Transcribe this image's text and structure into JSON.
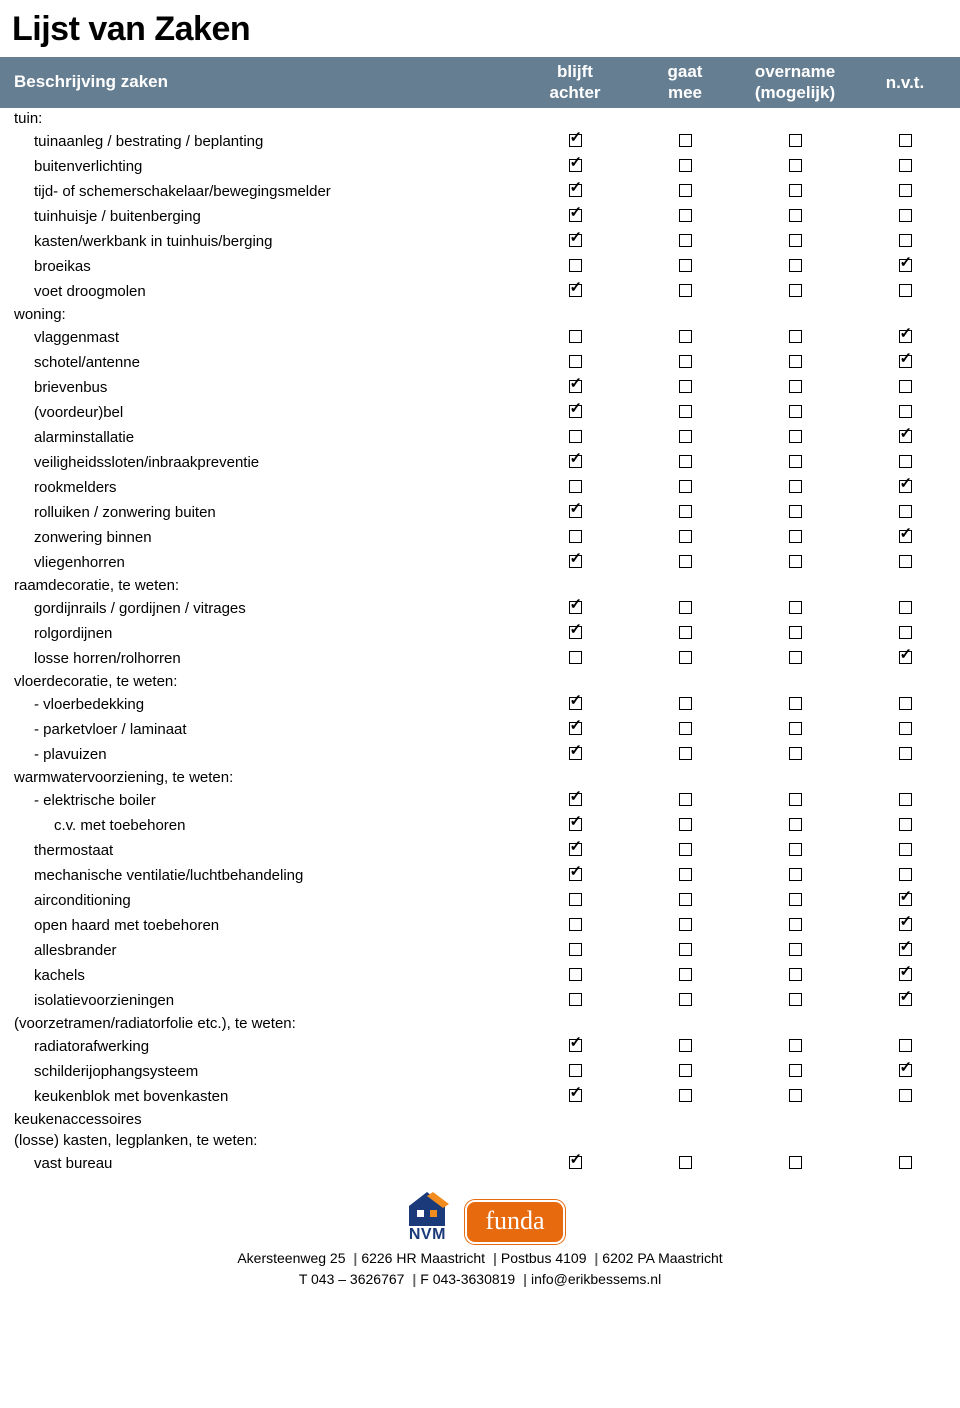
{
  "title": "Lijst van Zaken",
  "columns": {
    "description": "Beschrijving zaken",
    "c1": "blijft achter",
    "c2": "gaat mee",
    "c3": "overname (mogelijk)",
    "c4": "n.v.t."
  },
  "sections": [
    {
      "label": "tuin:",
      "items": [
        {
          "label": "tuinaanleg / bestrating / beplanting",
          "c": [
            1,
            0,
            0,
            0
          ]
        },
        {
          "label": "buitenverlichting",
          "c": [
            1,
            0,
            0,
            0
          ]
        },
        {
          "label": "tijd- of schemerschakelaar/bewegingsmelder",
          "c": [
            1,
            0,
            0,
            0
          ]
        },
        {
          "label": "tuinhuisje / buitenberging",
          "c": [
            1,
            0,
            0,
            0
          ]
        },
        {
          "label": "kasten/werkbank in tuinhuis/berging",
          "c": [
            1,
            0,
            0,
            0
          ]
        },
        {
          "label": "broeikas",
          "c": [
            0,
            0,
            0,
            1
          ]
        },
        {
          "label": "voet droogmolen",
          "c": [
            1,
            0,
            0,
            0
          ]
        }
      ]
    },
    {
      "label": "woning:",
      "items": [
        {
          "label": "vlaggenmast",
          "c": [
            0,
            0,
            0,
            1
          ]
        },
        {
          "label": "schotel/antenne",
          "c": [
            0,
            0,
            0,
            1
          ]
        },
        {
          "label": "brievenbus",
          "c": [
            1,
            0,
            0,
            0
          ]
        },
        {
          "label": "(voordeur)bel",
          "c": [
            1,
            0,
            0,
            0
          ]
        },
        {
          "label": "alarminstallatie",
          "c": [
            0,
            0,
            0,
            1
          ]
        },
        {
          "label": "veiligheidssloten/inbraakpreventie",
          "c": [
            1,
            0,
            0,
            0
          ]
        },
        {
          "label": "rookmelders",
          "c": [
            0,
            0,
            0,
            1
          ]
        },
        {
          "label": "rolluiken / zonwering buiten",
          "c": [
            1,
            0,
            0,
            0
          ]
        },
        {
          "label": "zonwering binnen",
          "c": [
            0,
            0,
            0,
            1
          ]
        },
        {
          "label": "vliegenhorren",
          "c": [
            1,
            0,
            0,
            0
          ]
        }
      ]
    },
    {
      "label": "raamdecoratie, te weten:",
      "items": [
        {
          "label": "gordijnrails / gordijnen / vitrages",
          "c": [
            1,
            0,
            0,
            0
          ]
        },
        {
          "label": "rolgordijnen",
          "c": [
            1,
            0,
            0,
            0
          ]
        },
        {
          "label": "losse horren/rolhorren",
          "c": [
            0,
            0,
            0,
            1
          ]
        }
      ]
    },
    {
      "label": "vloerdecoratie, te weten:",
      "items": [
        {
          "label": "- vloerbedekking",
          "c": [
            1,
            0,
            0,
            0
          ]
        },
        {
          "label": "- parketvloer / laminaat",
          "c": [
            1,
            0,
            0,
            0
          ]
        },
        {
          "label": "- plavuizen",
          "c": [
            1,
            0,
            0,
            0
          ]
        }
      ]
    },
    {
      "label": "warmwatervoorziening, te weten:",
      "items": [
        {
          "label": "- elektrische boiler",
          "c": [
            1,
            0,
            0,
            0
          ]
        },
        {
          "label": "c.v. met toebehoren",
          "indent": 2,
          "c": [
            1,
            0,
            0,
            0
          ]
        },
        {
          "label": "thermostaat",
          "c": [
            1,
            0,
            0,
            0
          ]
        },
        {
          "label": "mechanische ventilatie/luchtbehandeling",
          "c": [
            1,
            0,
            0,
            0
          ]
        },
        {
          "label": "airconditioning",
          "c": [
            0,
            0,
            0,
            1
          ]
        },
        {
          "label": "open haard met toebehoren",
          "c": [
            0,
            0,
            0,
            1
          ]
        },
        {
          "label": "allesbrander",
          "c": [
            0,
            0,
            0,
            1
          ]
        },
        {
          "label": "kachels",
          "c": [
            0,
            0,
            0,
            1
          ]
        },
        {
          "label": "isolatievoorzieningen",
          "c": [
            0,
            0,
            0,
            1
          ]
        }
      ]
    },
    {
      "label": "(voorzetramen/radiatorfolie etc.), te weten:",
      "items": [
        {
          "label": "radiatorafwerking",
          "c": [
            1,
            0,
            0,
            0
          ]
        },
        {
          "label": "schilderijophangsysteem",
          "c": [
            0,
            0,
            0,
            1
          ]
        },
        {
          "label": "keukenblok met bovenkasten",
          "c": [
            1,
            0,
            0,
            0
          ]
        }
      ]
    },
    {
      "label": "keukenaccessoires",
      "items": []
    },
    {
      "label": "(losse) kasten, legplanken, te weten:",
      "items": [
        {
          "label": "vast bureau",
          "c": [
            1,
            0,
            0,
            0
          ]
        }
      ]
    }
  ],
  "footer": {
    "nvm": "NVM",
    "funda": "funda",
    "line1_parts": [
      "Akersteenweg 25",
      "6226 HR Maastricht",
      "Postbus 4109",
      "6202 PA Maastricht"
    ],
    "line2_parts": [
      "T 043 – 3626767",
      "F 043-3630819",
      "info@erikbessems.nl"
    ]
  },
  "colors": {
    "header_bg": "#667e91",
    "header_text": "#ffffff",
    "funda_bg": "#e86a0f",
    "nvm_blue": "#1a3a7a",
    "nvm_orange": "#f28c1e"
  }
}
